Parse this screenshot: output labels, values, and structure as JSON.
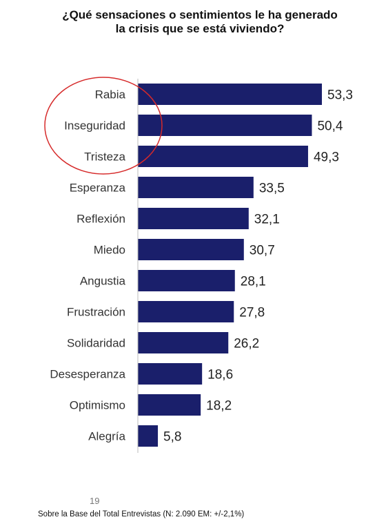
{
  "header": {
    "title_line1": "¿Qué sensaciones o sentimientos le ha generado",
    "title_line2": "la crisis que se está viviendo?"
  },
  "footer": {
    "page_number": "19",
    "note": "Sobre la Base del Total Entrevistas (N: 2.090 EM: +/-2,1%)"
  },
  "chart_data": {
    "type": "bar",
    "orientation": "horizontal",
    "title": "¿Qué sensaciones o sentimientos le ha generado la crisis que se está viviendo?",
    "categories": [
      "Rabia",
      "Inseguridad",
      "Tristeza",
      "Esperanza",
      "Reflexión",
      "Miedo",
      "Angustia",
      "Frustración",
      "Solidaridad",
      "Desesperanza",
      "Optimismo",
      "Alegría"
    ],
    "values": [
      53.3,
      50.4,
      49.3,
      33.5,
      32.1,
      30.7,
      28.1,
      27.8,
      26.2,
      18.6,
      18.2,
      5.8
    ],
    "value_labels": [
      "53,3",
      "50,4",
      "49,3",
      "33,5",
      "32,1",
      "30,7",
      "28,1",
      "27,8",
      "26,2",
      "18,6",
      "18,2",
      "5,8"
    ],
    "xlim": [
      0,
      53.3
    ],
    "grid": false,
    "bar_color": "#1a1f6b",
    "highlight": {
      "shape": "ellipse",
      "color": "#d62a2a",
      "categories": [
        "Rabia",
        "Inseguridad",
        "Tristeza"
      ]
    }
  }
}
